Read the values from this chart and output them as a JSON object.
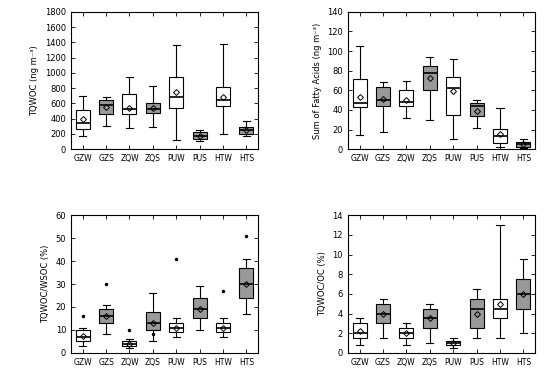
{
  "categories": [
    "GZW",
    "GZS",
    "ZQW",
    "ZQS",
    "PUW",
    "PUS",
    "HTW",
    "HTS"
  ],
  "colors": [
    "white",
    "#999999",
    "white",
    "#999999",
    "white",
    "#999999",
    "white",
    "#999999"
  ],
  "tqwoc": {
    "ylabel": "TQWOC (ng m⁻³)",
    "ylim": [
      0,
      1800
    ],
    "yticks": [
      0,
      200,
      400,
      600,
      800,
      1000,
      1200,
      1400,
      1600,
      1800
    ],
    "boxes": [
      {
        "q1": 270,
        "median": 350,
        "q3": 520,
        "whislo": 180,
        "whishi": 700,
        "mean": 390,
        "fliers": []
      },
      {
        "q1": 460,
        "median": 580,
        "q3": 645,
        "whislo": 300,
        "whishi": 680,
        "mean": 555,
        "fliers": []
      },
      {
        "q1": 460,
        "median": 530,
        "q3": 720,
        "whislo": 280,
        "whishi": 940,
        "mean": 545,
        "fliers": []
      },
      {
        "q1": 470,
        "median": 530,
        "q3": 600,
        "whislo": 290,
        "whishi": 830,
        "mean": 535,
        "fliers": []
      },
      {
        "q1": 540,
        "median": 690,
        "q3": 950,
        "whislo": 120,
        "whishi": 1370,
        "mean": 745,
        "fliers": []
      },
      {
        "q1": 140,
        "median": 175,
        "q3": 220,
        "whislo": 110,
        "whishi": 255,
        "mean": 175,
        "fliers": []
      },
      {
        "q1": 570,
        "median": 640,
        "q3": 810,
        "whislo": 200,
        "whishi": 1380,
        "mean": 685,
        "fliers": []
      },
      {
        "q1": 205,
        "median": 250,
        "q3": 295,
        "whislo": 180,
        "whishi": 370,
        "mean": 255,
        "fliers": []
      }
    ]
  },
  "fatty_acids": {
    "ylabel": "Sum of Fatty Acids (ng m⁻³)",
    "ylim": [
      0,
      140
    ],
    "yticks": [
      0,
      20,
      40,
      60,
      80,
      100,
      120,
      140
    ],
    "boxes": [
      {
        "q1": 43,
        "median": 47,
        "q3": 72,
        "whislo": 15,
        "whishi": 105,
        "mean": 53,
        "fliers": []
      },
      {
        "q1": 44,
        "median": 50,
        "q3": 63,
        "whislo": 18,
        "whishi": 68,
        "mean": 51,
        "fliers": []
      },
      {
        "q1": 44,
        "median": 48,
        "q3": 60,
        "whislo": 32,
        "whishi": 70,
        "mean": 50,
        "fliers": []
      },
      {
        "q1": 60,
        "median": 78,
        "q3": 85,
        "whislo": 30,
        "whishi": 94,
        "mean": 73,
        "fliers": []
      },
      {
        "q1": 35,
        "median": 62,
        "q3": 74,
        "whislo": 10,
        "whishi": 92,
        "mean": 59,
        "fliers": []
      },
      {
        "q1": 34,
        "median": 44,
        "q3": 47,
        "whislo": 22,
        "whishi": 50,
        "mean": 39,
        "fliers": []
      },
      {
        "q1": 6,
        "median": 14,
        "q3": 21,
        "whislo": 2,
        "whishi": 42,
        "mean": 16,
        "fliers": []
      },
      {
        "q1": 2,
        "median": 5,
        "q3": 7,
        "whislo": 1,
        "whishi": 10,
        "mean": 5,
        "fliers": []
      }
    ]
  },
  "tqwoc_wsoc": {
    "ylabel": "TQWOC/WSOC (%)",
    "ylim": [
      0,
      60
    ],
    "yticks": [
      0,
      10,
      20,
      30,
      40,
      50,
      60
    ],
    "boxes": [
      {
        "q1": 5,
        "median": 7,
        "q3": 10,
        "whislo": 3,
        "whishi": 11,
        "mean": 7.5,
        "fliers": [
          16
        ]
      },
      {
        "q1": 13,
        "median": 16,
        "q3": 19,
        "whislo": 8,
        "whishi": 21,
        "mean": 16,
        "fliers": [
          30
        ]
      },
      {
        "q1": 3,
        "median": 4,
        "q3": 5,
        "whislo": 2,
        "whishi": 6,
        "mean": 4,
        "fliers": [
          10
        ]
      },
      {
        "q1": 10,
        "median": 13,
        "q3": 18,
        "whislo": 5,
        "whishi": 26,
        "mean": 13,
        "fliers": [
          8
        ]
      },
      {
        "q1": 9,
        "median": 11,
        "q3": 13,
        "whislo": 7,
        "whishi": 15,
        "mean": 11,
        "fliers": [
          41
        ]
      },
      {
        "q1": 15,
        "median": 19,
        "q3": 24,
        "whislo": 10,
        "whishi": 29,
        "mean": 19,
        "fliers": []
      },
      {
        "q1": 9,
        "median": 11,
        "q3": 13,
        "whislo": 7,
        "whishi": 15,
        "mean": 11,
        "fliers": [
          27
        ]
      },
      {
        "q1": 24,
        "median": 30,
        "q3": 37,
        "whislo": 17,
        "whishi": 41,
        "mean": 30,
        "fliers": [
          51
        ]
      }
    ]
  },
  "tqwoc_oc": {
    "ylabel": "TQWOC/OC (%)",
    "ylim": [
      0,
      14
    ],
    "yticks": [
      0,
      2,
      4,
      6,
      8,
      10,
      12,
      14
    ],
    "boxes": [
      {
        "q1": 1.5,
        "median": 2.0,
        "q3": 3.0,
        "whislo": 0.8,
        "whishi": 3.5,
        "mean": 2.2,
        "fliers": []
      },
      {
        "q1": 3.0,
        "median": 4.0,
        "q3": 5.0,
        "whislo": 1.5,
        "whishi": 5.5,
        "mean": 4.0,
        "fliers": []
      },
      {
        "q1": 1.5,
        "median": 2.0,
        "q3": 2.5,
        "whislo": 0.8,
        "whishi": 3.0,
        "mean": 2.0,
        "fliers": []
      },
      {
        "q1": 2.5,
        "median": 3.5,
        "q3": 4.5,
        "whislo": 1.0,
        "whishi": 5.0,
        "mean": 3.5,
        "fliers": []
      },
      {
        "q1": 0.8,
        "median": 1.0,
        "q3": 1.2,
        "whislo": 0.5,
        "whishi": 1.5,
        "mean": 1.0,
        "fliers": []
      },
      {
        "q1": 2.5,
        "median": 4.5,
        "q3": 5.5,
        "whislo": 1.5,
        "whishi": 6.5,
        "mean": 4.0,
        "fliers": []
      },
      {
        "q1": 3.5,
        "median": 4.5,
        "q3": 5.5,
        "whislo": 1.5,
        "whishi": 13.0,
        "mean": 5.0,
        "fliers": []
      },
      {
        "q1": 4.5,
        "median": 6.0,
        "q3": 7.5,
        "whislo": 2.0,
        "whishi": 9.5,
        "mean": 6.0,
        "fliers": []
      }
    ]
  }
}
